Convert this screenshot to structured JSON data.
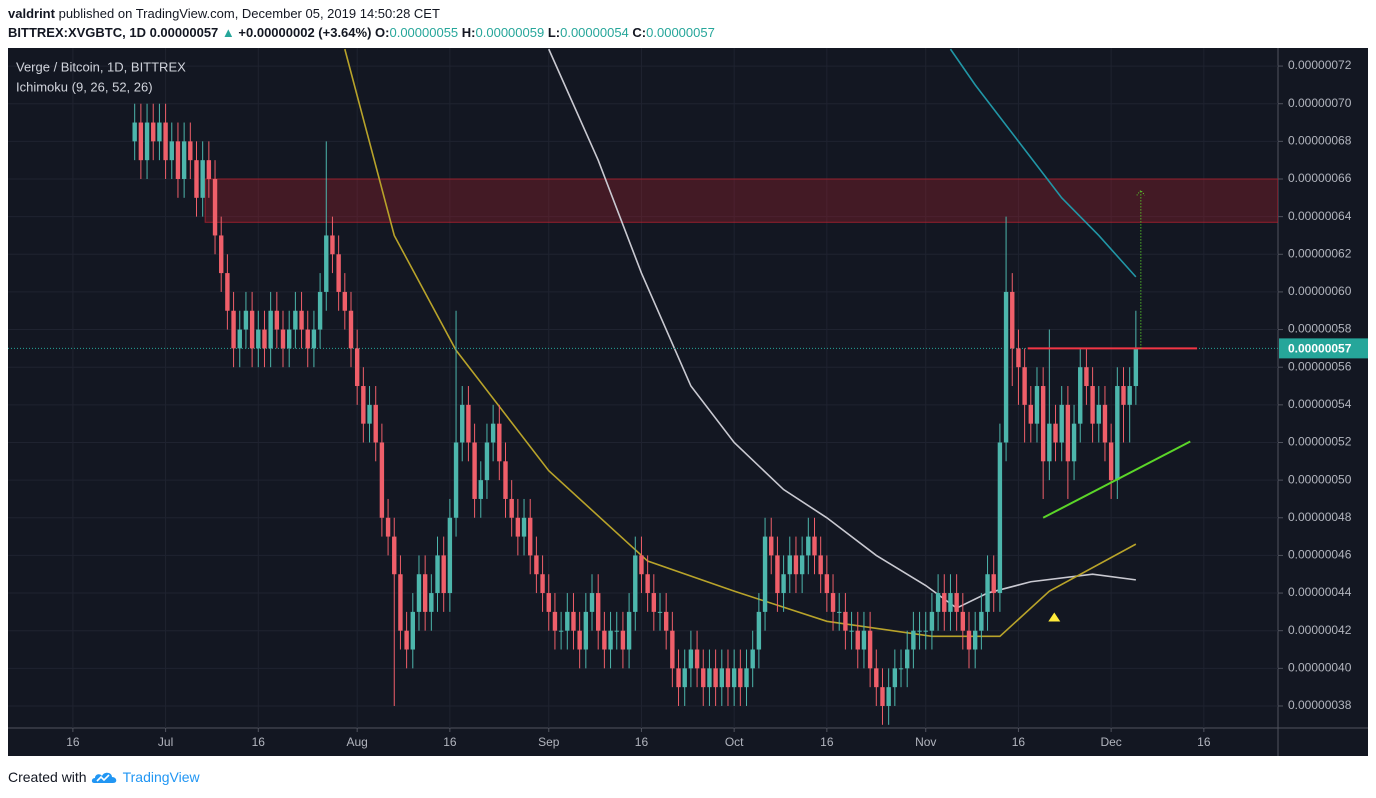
{
  "header": {
    "author": "valdrint",
    "published": "published on TradingView.com, December 05, 2019 14:50:28 CET",
    "symbol": "BITTREX:XVGBTC, 1D",
    "last": "0.00000057",
    "arrow": "▲",
    "change": "+0.00000002 (+3.64%)",
    "ohlc": [
      {
        "label": "O:",
        "value": "0.00000055"
      },
      {
        "label": "H:",
        "value": "0.00000059"
      },
      {
        "label": "L:",
        "value": "0.00000054"
      },
      {
        "label": "C:",
        "value": "0.00000057"
      }
    ]
  },
  "chart_data": {
    "type": "candlestick",
    "legend": [
      "Verge / Bitcoin, 1D, BITTREX",
      "Ichimoku (9, 26, 52, 26)"
    ],
    "up_color": "#4db6ac",
    "down_color": "#ef5f6a",
    "grid": true,
    "xlim": [
      -10.5,
      195
    ],
    "xticks": [
      {
        "value": 0,
        "label": "16"
      },
      {
        "value": 15,
        "label": "Jul"
      },
      {
        "value": 30,
        "label": "16"
      },
      {
        "value": 46,
        "label": "Aug"
      },
      {
        "value": 61,
        "label": "16"
      },
      {
        "value": 77,
        "label": "Sep"
      },
      {
        "value": 92,
        "label": "16"
      },
      {
        "value": 107,
        "label": "Oct"
      },
      {
        "value": 122,
        "label": "16"
      },
      {
        "value": 138,
        "label": "Nov"
      },
      {
        "value": 153,
        "label": "16"
      },
      {
        "value": 168,
        "label": "Dec"
      },
      {
        "value": 183,
        "label": "16"
      }
    ],
    "ylim": [
      3.683e-07,
      7.296e-07
    ],
    "yticks": [
      {
        "value": 3.8e-07,
        "label": "0.00000038"
      },
      {
        "value": 4e-07,
        "label": "0.00000040"
      },
      {
        "value": 4.2e-07,
        "label": "0.00000042"
      },
      {
        "value": 4.4e-07,
        "label": "0.00000044"
      },
      {
        "value": 4.6e-07,
        "label": "0.00000046"
      },
      {
        "value": 4.8e-07,
        "label": "0.00000048"
      },
      {
        "value": 5e-07,
        "label": "0.00000050"
      },
      {
        "value": 5.2e-07,
        "label": "0.00000052"
      },
      {
        "value": 5.4e-07,
        "label": "0.00000054"
      },
      {
        "value": 5.6e-07,
        "label": "0.00000056"
      },
      {
        "value": 5.8e-07,
        "label": "0.00000058"
      },
      {
        "value": 6e-07,
        "label": "0.00000060"
      },
      {
        "value": 6.2e-07,
        "label": "0.00000062"
      },
      {
        "value": 6.4e-07,
        "label": "0.00000064"
      },
      {
        "value": 6.6e-07,
        "label": "0.00000066"
      },
      {
        "value": 6.8e-07,
        "label": "0.00000068"
      },
      {
        "value": 7e-07,
        "label": "0.00000070"
      },
      {
        "value": 7.2e-07,
        "label": "0.00000072"
      }
    ],
    "current_price": {
      "value": 5.7e-07,
      "label": "0.00000057",
      "color": "#26a69a"
    },
    "candles": {
      "x": [
        10,
        11,
        12,
        13,
        14,
        15,
        16,
        17,
        18,
        19,
        20,
        21,
        22,
        23,
        24,
        25,
        26,
        27,
        28,
        29,
        30,
        31,
        32,
        33,
        34,
        35,
        36,
        37,
        38,
        39,
        40,
        41,
        42,
        43,
        44,
        45,
        46,
        47,
        48,
        49,
        50,
        51,
        52,
        53,
        54,
        55,
        56,
        57,
        58,
        59,
        60,
        61,
        62,
        63,
        64,
        65,
        66,
        67,
        68,
        69,
        70,
        71,
        72,
        73,
        74,
        75,
        76,
        77,
        78,
        79,
        80,
        81,
        82,
        83,
        84,
        85,
        86,
        87,
        88,
        89,
        90,
        91,
        92,
        93,
        94,
        95,
        96,
        97,
        98,
        99,
        100,
        101,
        102,
        103,
        104,
        105,
        106,
        107,
        108,
        109,
        110,
        111,
        112,
        113,
        114,
        115,
        116,
        117,
        118,
        119,
        120,
        121,
        122,
        123,
        124,
        125,
        126,
        127,
        128,
        129,
        130,
        131,
        132,
        133,
        134,
        135,
        136,
        137,
        138,
        139,
        140,
        141,
        142,
        143,
        144,
        145,
        146,
        147,
        148,
        149,
        150,
        151,
        152,
        153,
        154,
        155,
        156,
        157,
        158,
        159,
        160,
        161,
        162,
        163,
        164,
        165,
        166,
        167,
        168,
        169,
        170,
        171,
        172
      ],
      "open": [
        6.8e-07,
        6.9e-07,
        6.7e-07,
        6.9e-07,
        6.8e-07,
        6.9e-07,
        6.7e-07,
        6.8e-07,
        6.6e-07,
        6.8e-07,
        6.7e-07,
        6.5e-07,
        6.7e-07,
        6.6e-07,
        6.3e-07,
        6.1e-07,
        5.9e-07,
        5.7e-07,
        5.8e-07,
        5.9e-07,
        5.7e-07,
        5.8e-07,
        5.7e-07,
        5.9e-07,
        5.8e-07,
        5.7e-07,
        5.8e-07,
        5.9e-07,
        5.8e-07,
        5.7e-07,
        5.8e-07,
        6e-07,
        6.3e-07,
        6.2e-07,
        6e-07,
        5.9e-07,
        5.7e-07,
        5.5e-07,
        5.3e-07,
        5.4e-07,
        5.2e-07,
        4.8e-07,
        4.7e-07,
        4.5e-07,
        4.2e-07,
        4.1e-07,
        4.3e-07,
        4.5e-07,
        4.3e-07,
        4.4e-07,
        4.6e-07,
        4.4e-07,
        4.8e-07,
        5.2e-07,
        5.4e-07,
        5.2e-07,
        4.9e-07,
        5e-07,
        5.2e-07,
        5.3e-07,
        5.1e-07,
        4.9e-07,
        4.8e-07,
        4.7e-07,
        4.8e-07,
        4.6e-07,
        4.5e-07,
        4.4e-07,
        4.3e-07,
        4.2e-07,
        4.2e-07,
        4.3e-07,
        4.2e-07,
        4.1e-07,
        4.3e-07,
        4.4e-07,
        4.2e-07,
        4.1e-07,
        4.2e-07,
        4.2e-07,
        4.1e-07,
        4.3e-07,
        4.6e-07,
        4.5e-07,
        4.4e-07,
        4.3e-07,
        4.3e-07,
        4.2e-07,
        4e-07,
        3.9e-07,
        4e-07,
        4.1e-07,
        4e-07,
        3.9e-07,
        4e-07,
        3.9e-07,
        4e-07,
        3.9e-07,
        4e-07,
        3.9e-07,
        4e-07,
        4.1e-07,
        4.3e-07,
        4.7e-07,
        4.6e-07,
        4.4e-07,
        4.5e-07,
        4.6e-07,
        4.5e-07,
        4.6e-07,
        4.7e-07,
        4.6e-07,
        4.5e-07,
        4.4e-07,
        4.3e-07,
        4.3e-07,
        4.2e-07,
        4.2e-07,
        4.1e-07,
        4.2e-07,
        4e-07,
        3.9e-07,
        3.8e-07,
        3.9e-07,
        4e-07,
        4e-07,
        4.1e-07,
        4.2e-07,
        4.2e-07,
        4.2e-07,
        4.3e-07,
        4.4e-07,
        4.3e-07,
        4.4e-07,
        4.3e-07,
        4.2e-07,
        4.1e-07,
        4.2e-07,
        4.3e-07,
        4.5e-07,
        4.4e-07,
        5.2e-07,
        6e-07,
        5.7e-07,
        5.6e-07,
        5.4e-07,
        5.3e-07,
        5.5e-07,
        5.1e-07,
        5.3e-07,
        5.2e-07,
        5.4e-07,
        5.1e-07,
        5.3e-07,
        5.6e-07,
        5.5e-07,
        5.3e-07,
        5.4e-07,
        5.2e-07,
        5e-07,
        5.5e-07,
        5.4e-07,
        5.5e-07
      ],
      "high": [
        7e-07,
        7e-07,
        7e-07,
        7e-07,
        7e-07,
        7e-07,
        6.9e-07,
        6.9e-07,
        6.9e-07,
        6.9e-07,
        6.8e-07,
        6.8e-07,
        6.8e-07,
        6.7e-07,
        6.4e-07,
        6.2e-07,
        6e-07,
        5.9e-07,
        6e-07,
        6e-07,
        5.9e-07,
        5.9e-07,
        6e-07,
        6e-07,
        5.9e-07,
        5.9e-07,
        6e-07,
        6e-07,
        5.9e-07,
        5.9e-07,
        6.1e-07,
        6.8e-07,
        6.4e-07,
        6.3e-07,
        6.1e-07,
        6e-07,
        5.8e-07,
        5.6e-07,
        5.5e-07,
        5.5e-07,
        5.3e-07,
        4.9e-07,
        4.8e-07,
        4.6e-07,
        4.3e-07,
        4.4e-07,
        4.6e-07,
        4.6e-07,
        4.5e-07,
        4.7e-07,
        4.7e-07,
        4.9e-07,
        5.9e-07,
        5.5e-07,
        5.5e-07,
        5.3e-07,
        5.1e-07,
        5.3e-07,
        5.4e-07,
        5.4e-07,
        5.2e-07,
        5e-07,
        4.9e-07,
        4.9e-07,
        4.9e-07,
        4.7e-07,
        4.6e-07,
        4.5e-07,
        4.4e-07,
        4.3e-07,
        4.4e-07,
        4.4e-07,
        4.3e-07,
        4.4e-07,
        4.5e-07,
        4.5e-07,
        4.3e-07,
        4.3e-07,
        4.3e-07,
        4.3e-07,
        4.4e-07,
        4.7e-07,
        4.7e-07,
        4.6e-07,
        4.5e-07,
        4.4e-07,
        4.4e-07,
        4.3e-07,
        4.1e-07,
        4.1e-07,
        4.2e-07,
        4.2e-07,
        4.1e-07,
        4.1e-07,
        4.1e-07,
        4.1e-07,
        4.1e-07,
        4.1e-07,
        4.1e-07,
        4.1e-07,
        4.2e-07,
        4.4e-07,
        4.8e-07,
        4.8e-07,
        4.7e-07,
        4.6e-07,
        4.7e-07,
        4.7e-07,
        4.7e-07,
        4.8e-07,
        4.8e-07,
        4.7e-07,
        4.6e-07,
        4.5e-07,
        4.4e-07,
        4.4e-07,
        4.3e-07,
        4.3e-07,
        4.3e-07,
        4.3e-07,
        4.1e-07,
        4e-07,
        4e-07,
        4.1e-07,
        4.1e-07,
        4.2e-07,
        4.3e-07,
        4.3e-07,
        4.3e-07,
        4.4e-07,
        4.5e-07,
        4.5e-07,
        4.5e-07,
        4.5e-07,
        4.4e-07,
        4.3e-07,
        4.3e-07,
        4.4e-07,
        4.6e-07,
        4.6e-07,
        5.3e-07,
        6.4e-07,
        6.1e-07,
        5.8e-07,
        5.7e-07,
        5.5e-07,
        5.6e-07,
        5.6e-07,
        5.8e-07,
        5.4e-07,
        5.5e-07,
        5.5e-07,
        5.4e-07,
        5.7e-07,
        5.7e-07,
        5.6e-07,
        5.5e-07,
        5.5e-07,
        5.3e-07,
        5.6e-07,
        5.6e-07,
        5.6e-07,
        5.9e-07
      ],
      "low": [
        6.7e-07,
        6.6e-07,
        6.6e-07,
        6.7e-07,
        6.7e-07,
        6.6e-07,
        6.6e-07,
        6.5e-07,
        6.5e-07,
        6.6e-07,
        6.4e-07,
        6.4e-07,
        6.5e-07,
        6.2e-07,
        6e-07,
        5.8e-07,
        5.6e-07,
        5.6e-07,
        5.7e-07,
        5.6e-07,
        5.6e-07,
        5.6e-07,
        5.6e-07,
        5.7e-07,
        5.6e-07,
        5.6e-07,
        5.7e-07,
        5.7e-07,
        5.6e-07,
        5.6e-07,
        5.7e-07,
        5.9e-07,
        6.1e-07,
        5.9e-07,
        5.8e-07,
        5.6e-07,
        5.4e-07,
        5.2e-07,
        5.2e-07,
        5.1e-07,
        4.7e-07,
        4.6e-07,
        3.8e-07,
        4.1e-07,
        4e-07,
        4e-07,
        4.2e-07,
        4.2e-07,
        4.2e-07,
        4.3e-07,
        4.3e-07,
        4.3e-07,
        4.7e-07,
        5.1e-07,
        5.1e-07,
        4.8e-07,
        4.8e-07,
        4.9e-07,
        5.1e-07,
        5e-07,
        4.8e-07,
        4.7e-07,
        4.6e-07,
        4.6e-07,
        4.5e-07,
        4.4e-07,
        4.3e-07,
        4.2e-07,
        4.1e-07,
        4.1e-07,
        4.1e-07,
        4.1e-07,
        4e-07,
        4e-07,
        4.2e-07,
        4.1e-07,
        4e-07,
        4e-07,
        4.1e-07,
        4e-07,
        4e-07,
        4.2e-07,
        4.4e-07,
        4.3e-07,
        4.2e-07,
        4.2e-07,
        4.1e-07,
        3.9e-07,
        3.8e-07,
        3.8e-07,
        3.9e-07,
        3.9e-07,
        3.8e-07,
        3.8e-07,
        3.8e-07,
        3.8e-07,
        3.8e-07,
        3.8e-07,
        3.8e-07,
        3.8e-07,
        3.9e-07,
        4e-07,
        4.2e-07,
        4.5e-07,
        4.3e-07,
        4.3e-07,
        4.4e-07,
        4.4e-07,
        4.4e-07,
        4.5e-07,
        4.5e-07,
        4.4e-07,
        4.3e-07,
        4.2e-07,
        4.2e-07,
        4.1e-07,
        4.1e-07,
        4e-07,
        4e-07,
        3.9e-07,
        3.8e-07,
        3.7e-07,
        3.7e-07,
        3.8e-07,
        3.9e-07,
        3.9e-07,
        4e-07,
        4.1e-07,
        4.1e-07,
        4.1e-07,
        4.2e-07,
        4.2e-07,
        4.2e-07,
        4.2e-07,
        4.1e-07,
        4e-07,
        4e-07,
        4.1e-07,
        4.2e-07,
        4.3e-07,
        4.3e-07,
        5.1e-07,
        5.5e-07,
        5.4e-07,
        5.2e-07,
        5.2e-07,
        5.2e-07,
        4.9e-07,
        5e-07,
        5.1e-07,
        5.1e-07,
        4.9e-07,
        5e-07,
        5.2e-07,
        5.4e-07,
        5.2e-07,
        5.2e-07,
        5.1e-07,
        4.9e-07,
        4.9e-07,
        5.2e-07,
        5.2e-07,
        5.4e-07
      ],
      "close": [
        6.9e-07,
        6.7e-07,
        6.9e-07,
        6.8e-07,
        6.9e-07,
        6.7e-07,
        6.8e-07,
        6.6e-07,
        6.8e-07,
        6.7e-07,
        6.5e-07,
        6.7e-07,
        6.6e-07,
        6.3e-07,
        6.1e-07,
        5.9e-07,
        5.7e-07,
        5.8e-07,
        5.9e-07,
        5.7e-07,
        5.8e-07,
        5.7e-07,
        5.9e-07,
        5.8e-07,
        5.7e-07,
        5.8e-07,
        5.9e-07,
        5.8e-07,
        5.7e-07,
        5.8e-07,
        6e-07,
        6.3e-07,
        6.2e-07,
        6e-07,
        5.9e-07,
        5.7e-07,
        5.5e-07,
        5.3e-07,
        5.4e-07,
        5.2e-07,
        4.8e-07,
        4.7e-07,
        4.5e-07,
        4.2e-07,
        4.1e-07,
        4.3e-07,
        4.5e-07,
        4.3e-07,
        4.4e-07,
        4.6e-07,
        4.4e-07,
        4.8e-07,
        5.2e-07,
        5.4e-07,
        5.2e-07,
        4.9e-07,
        5e-07,
        5.2e-07,
        5.3e-07,
        5.1e-07,
        4.9e-07,
        4.8e-07,
        4.7e-07,
        4.8e-07,
        4.6e-07,
        4.5e-07,
        4.4e-07,
        4.3e-07,
        4.2e-07,
        4.2e-07,
        4.3e-07,
        4.2e-07,
        4.1e-07,
        4.3e-07,
        4.4e-07,
        4.2e-07,
        4.1e-07,
        4.2e-07,
        4.2e-07,
        4.1e-07,
        4.3e-07,
        4.6e-07,
        4.5e-07,
        4.4e-07,
        4.3e-07,
        4.3e-07,
        4.2e-07,
        4e-07,
        3.9e-07,
        4e-07,
        4.1e-07,
        4e-07,
        3.9e-07,
        4e-07,
        3.9e-07,
        4e-07,
        3.9e-07,
        4e-07,
        3.9e-07,
        4e-07,
        4.1e-07,
        4.3e-07,
        4.7e-07,
        4.6e-07,
        4.4e-07,
        4.5e-07,
        4.6e-07,
        4.5e-07,
        4.6e-07,
        4.7e-07,
        4.6e-07,
        4.5e-07,
        4.4e-07,
        4.3e-07,
        4.3e-07,
        4.2e-07,
        4.2e-07,
        4.1e-07,
        4.2e-07,
        4e-07,
        3.9e-07,
        3.8e-07,
        3.9e-07,
        4e-07,
        4e-07,
        4.1e-07,
        4.2e-07,
        4.2e-07,
        4.2e-07,
        4.3e-07,
        4.4e-07,
        4.3e-07,
        4.4e-07,
        4.3e-07,
        4.2e-07,
        4.1e-07,
        4.2e-07,
        4.3e-07,
        4.5e-07,
        4.4e-07,
        5.2e-07,
        6e-07,
        5.7e-07,
        5.6e-07,
        5.4e-07,
        5.3e-07,
        5.5e-07,
        5.1e-07,
        5.3e-07,
        5.2e-07,
        5.4e-07,
        5.1e-07,
        5.3e-07,
        5.6e-07,
        5.5e-07,
        5.3e-07,
        5.4e-07,
        5.2e-07,
        5e-07,
        5.5e-07,
        5.4e-07,
        5.5e-07,
        5.7e-07
      ]
    },
    "indicators": [
      {
        "color": "#2196a6",
        "x": [
          142,
          146,
          153,
          160,
          166,
          172
        ],
        "values": [
          7.29e-07,
          7.1e-07,
          6.8e-07,
          6.5e-07,
          6.3e-07,
          6.08e-07
        ]
      },
      {
        "color": "#c9c9d1",
        "x": [
          77,
          85,
          92,
          100,
          107,
          115,
          122,
          130,
          138,
          143,
          148,
          155,
          165,
          172
        ],
        "values": [
          7.29e-07,
          6.7e-07,
          6.1e-07,
          5.5e-07,
          5.2e-07,
          4.95e-07,
          4.8e-07,
          4.6e-07,
          4.44e-07,
          4.32e-07,
          4.4e-07,
          4.46e-07,
          4.5e-07,
          4.47e-07
        ]
      },
      {
        "color": "#b8a32a",
        "x": [
          44,
          52,
          62,
          77,
          93,
          107,
          122,
          139,
          150,
          158,
          172
        ],
        "values": [
          7.29e-07,
          6.3e-07,
          5.69e-07,
          5.05e-07,
          4.57e-07,
          4.41e-07,
          4.25e-07,
          4.17e-07,
          4.17e-07,
          4.41e-07,
          4.66e-07
        ]
      }
    ],
    "drawings": {
      "zone": {
        "x_start": 21.4,
        "top": 6.6e-07,
        "bottom": 6.37e-07,
        "color": "#b2222f"
      },
      "resistance": {
        "x": [
          154.5,
          181.9
        ],
        "value": 5.7e-07,
        "color": "#f23645"
      },
      "support": {
        "x": [
          157,
          180.8
        ],
        "values": [
          4.8e-07,
          5.205e-07
        ],
        "color": "#5bd629"
      },
      "target": {
        "x": 172.8,
        "from": 5.7e-07,
        "to": 6.54e-07,
        "color": "#5bd629"
      },
      "marker": {
        "x": 158.8,
        "value": 4.27e-07,
        "color": "#ffeb3b"
      }
    }
  },
  "footer": {
    "text": "Created with",
    "brand": "TradingView"
  }
}
